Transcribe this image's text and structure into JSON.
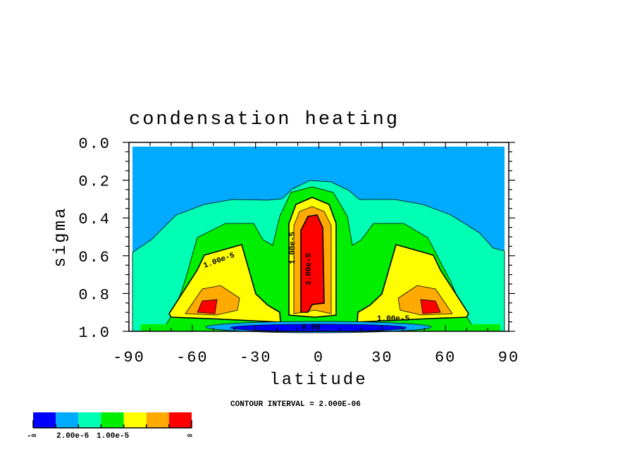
{
  "chart_data": {
    "type": "heatmap",
    "subtype": "filled-contour",
    "title": "condensation heating",
    "xlabel": "latitude",
    "ylabel": "sigma",
    "xlim": [
      -90,
      90
    ],
    "ylim": [
      1.0,
      0.0
    ],
    "xticks": [
      -90,
      -60,
      -30,
      0,
      30,
      60,
      90
    ],
    "xtick_labels": [
      "-90",
      "-60",
      "-30",
      "0",
      "30",
      "60",
      "90"
    ],
    "yticks": [
      0.0,
      0.2,
      0.4,
      0.6,
      0.8,
      1.0
    ],
    "ytick_labels": [
      "0.0",
      "0.2",
      "0.4",
      "0.6",
      "0.8",
      "1.0"
    ],
    "contour_interval_text": "CONTOUR INTERVAL = 2.000E-06",
    "contour_interval": 2e-06,
    "contour_labels": [
      "1.00e-5",
      "1.00e-5",
      "3.00e-5",
      "1.00e-5",
      "0.00"
    ],
    "features": [
      {
        "name": "tropical maximum",
        "lat": 0,
        "sigma_range": [
          0.3,
          0.95
        ],
        "level": ">1.00e-5"
      },
      {
        "name": "southern midlatitude maximum",
        "lat": -50,
        "sigma": 0.85,
        "level": ">1.00e-5"
      },
      {
        "name": "northern midlatitude maximum",
        "lat": 50,
        "sigma": 0.85,
        "level": ">1.00e-5"
      },
      {
        "name": "near-surface negative region",
        "lat_range": [
          -45,
          45
        ],
        "sigma": 0.98,
        "level": "<0"
      }
    ],
    "colorbar": {
      "colors": [
        "#0000ff",
        "#00aaff",
        "#00ffb4",
        "#00ee00",
        "#ffff00",
        "#ffaa00",
        "#ff0000"
      ],
      "labels": [
        "-∞",
        "2.00e-6",
        "1.00e-5",
        "∞"
      ]
    }
  }
}
